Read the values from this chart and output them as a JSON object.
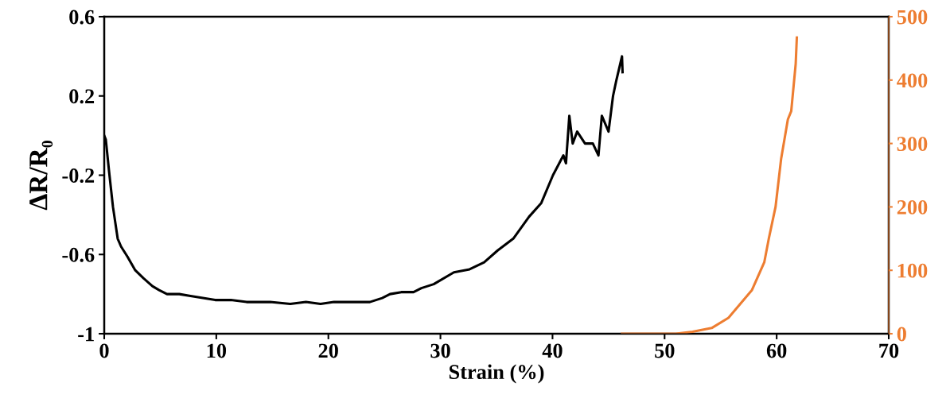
{
  "chart_data": {
    "type": "line",
    "xlabel": "Strain (%)",
    "ylabel": "ΔR/R₀",
    "xlim": [
      0,
      70
    ],
    "xticks": [
      0,
      10,
      20,
      30,
      40,
      50,
      60,
      70
    ],
    "ylim": [
      -1,
      0.6
    ],
    "yticks": [
      -1,
      -0.6,
      -0.2,
      0.2,
      0.6
    ],
    "y2lim": [
      0,
      500
    ],
    "y2ticks": [
      0,
      100,
      200,
      300,
      400,
      500
    ],
    "grid": false,
    "marker": "none",
    "line_style": "solid",
    "series": [
      {
        "color": "#000000",
        "x": [
          0,
          0.14,
          0.43,
          0.78,
          1.2,
          1.5,
          2.06,
          2.77,
          3.5,
          4.3,
          4.9,
          5.6,
          6.7,
          7.7,
          8.8,
          9.9,
          11.3,
          12.7,
          14.8,
          16.6,
          18.0,
          19.3,
          20.5,
          21.9,
          23.7,
          24.8,
          25.5,
          26.5,
          27.6,
          28.3,
          29.4,
          31.2,
          32.6,
          33.9,
          35.1,
          36.5,
          37.9,
          39.0,
          40.04,
          40.97,
          41.2,
          41.5,
          41.8,
          42.2,
          42.9,
          43.6,
          44.1,
          44.4,
          45.0,
          45.4,
          45.7,
          46.2,
          46.25
        ],
        "values": [
          0.0,
          -0.02,
          -0.18,
          -0.36,
          -0.52,
          -0.56,
          -0.61,
          -0.68,
          -0.72,
          -0.76,
          -0.78,
          -0.8,
          -0.8,
          -0.81,
          -0.82,
          -0.83,
          -0.83,
          -0.84,
          -0.84,
          -0.85,
          -0.84,
          -0.85,
          -0.84,
          -0.84,
          -0.84,
          -0.82,
          -0.8,
          -0.79,
          -0.79,
          -0.77,
          -0.75,
          -0.69,
          -0.675,
          -0.64,
          -0.58,
          -0.52,
          -0.41,
          -0.34,
          -0.2,
          -0.1,
          -0.14,
          0.1,
          -0.04,
          0.02,
          -0.04,
          -0.04,
          -0.1,
          0.1,
          0.02,
          0.2,
          0.28,
          0.4,
          0.32
        ]
      },
      {
        "color": "#ed7d31",
        "axis": "y2",
        "x": [
          46.2,
          51.0,
          52.5,
          54.2,
          55.7,
          56.9,
          57.8,
          58.9,
          59.3,
          59.9,
          60.4,
          61.0,
          61.3,
          61.7,
          61.8
        ],
        "values": [
          0,
          0,
          3,
          9,
          25,
          50,
          69,
          113,
          150,
          200,
          276,
          338,
          351,
          426,
          467
        ]
      }
    ]
  }
}
